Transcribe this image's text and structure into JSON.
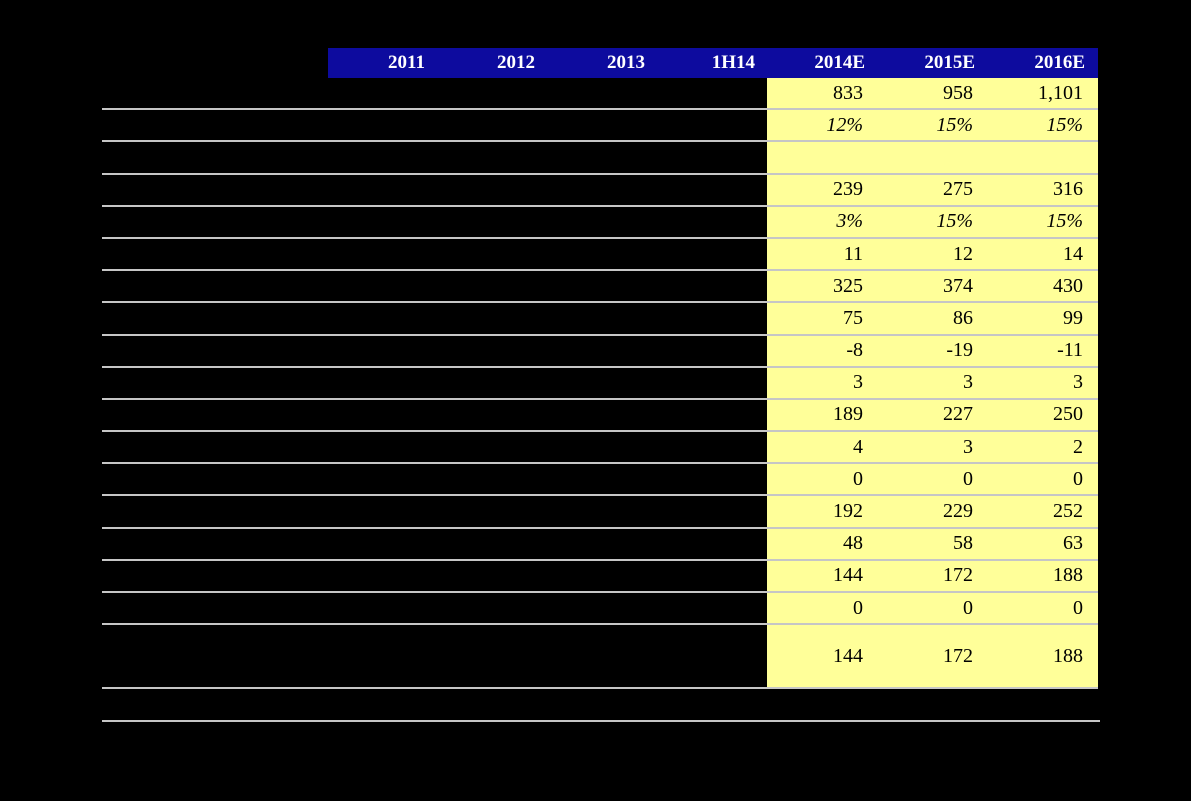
{
  "table": {
    "header": {
      "bg_color": "#0d0b9e",
      "text_color": "#ffffff",
      "columns": [
        "2011",
        "2012",
        "2013",
        "1H14",
        "2014E",
        "2015E",
        "2016E"
      ]
    },
    "highlight": {
      "bg_color": "#ffff99",
      "columns": [
        "2014E",
        "2015E",
        "2016E"
      ]
    },
    "gridline_color": "#c6c6c6",
    "background_color": "#000000",
    "value_text_color": "#000000",
    "rows": [
      {
        "values": [
          "833",
          "958",
          "1,101"
        ],
        "italic": false
      },
      {
        "values": [
          "12%",
          "15%",
          "15%"
        ],
        "italic": true
      },
      {
        "values": [
          "",
          "",
          ""
        ],
        "italic": false
      },
      {
        "values": [
          "239",
          "275",
          "316"
        ],
        "italic": false
      },
      {
        "values": [
          "3%",
          "15%",
          "15%"
        ],
        "italic": true
      },
      {
        "values": [
          "11",
          "12",
          "14"
        ],
        "italic": false
      },
      {
        "values": [
          "325",
          "374",
          "430"
        ],
        "italic": false
      },
      {
        "values": [
          "75",
          "86",
          "99"
        ],
        "italic": false
      },
      {
        "values": [
          "-8",
          "-19",
          "-11"
        ],
        "italic": false
      },
      {
        "values": [
          "3",
          "3",
          "3"
        ],
        "italic": false
      },
      {
        "values": [
          "189",
          "227",
          "250"
        ],
        "italic": false
      },
      {
        "values": [
          "4",
          "3",
          "2"
        ],
        "italic": false
      },
      {
        "values": [
          "0",
          "0",
          "0"
        ],
        "italic": false
      },
      {
        "values": [
          "192",
          "229",
          "252"
        ],
        "italic": false
      },
      {
        "values": [
          "48",
          "58",
          "63"
        ],
        "italic": false
      },
      {
        "values": [
          "144",
          "172",
          "188"
        ],
        "italic": false
      },
      {
        "values": [
          "0",
          "0",
          "0"
        ],
        "italic": false
      },
      {
        "values": [
          "144",
          "172",
          "188"
        ],
        "italic": false,
        "tall": true
      }
    ]
  }
}
